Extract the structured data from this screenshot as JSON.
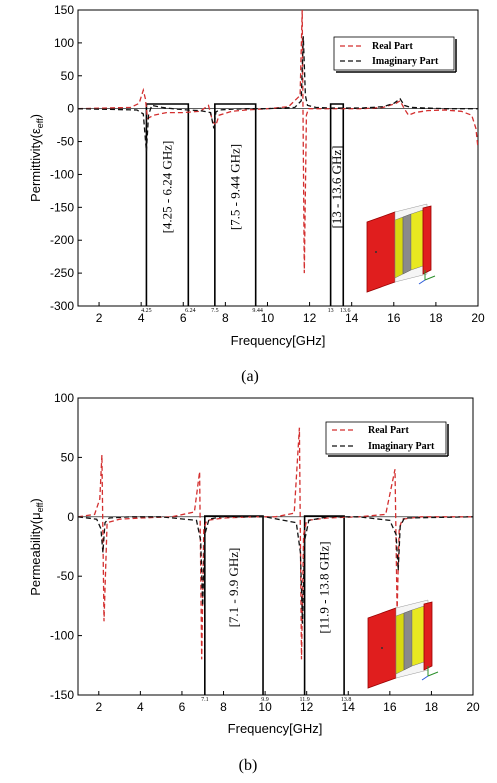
{
  "chart_data": [
    {
      "type": "line",
      "caption": "(a)",
      "xlabel": "Frequency[GHz]",
      "ylabel_text": "Permittivity(ε",
      "ylabel_sub": "eff",
      "ylabel_close": ")",
      "xlim": [
        1,
        20
      ],
      "ylim": [
        -300,
        150
      ],
      "x_ticks": [
        2,
        4,
        6,
        8,
        10,
        12,
        14,
        16,
        18,
        20
      ],
      "y_ticks": [
        150,
        100,
        50,
        0,
        -50,
        -100,
        -150,
        -200,
        -250,
        -300
      ],
      "legend": {
        "position": "top-right",
        "entries": [
          "Real Part",
          "Imaginary Part"
        ]
      },
      "series": [
        {
          "name": "Real Part",
          "color": "#d32f2f",
          "dash": "dashed",
          "x": [
            1,
            3.5,
            3.9,
            4.1,
            4.2,
            4.3,
            4.6,
            5.2,
            6.0,
            6.8,
            7.2,
            7.4,
            7.55,
            7.7,
            8.3,
            9.0,
            10.0,
            11.0,
            11.55,
            11.65,
            11.75,
            11.85,
            11.95,
            12.2,
            13.0,
            14.5,
            15.5,
            16.1,
            16.3,
            16.5,
            16.7,
            17.0,
            17.6,
            18.4,
            19.2,
            19.7,
            19.9,
            20
          ],
          "y": [
            0,
            2,
            8,
            28,
            15,
            -15,
            -10,
            -6,
            -6,
            -4,
            5,
            -20,
            -25,
            -10,
            -4,
            -2,
            0,
            3,
            20,
            150,
            -250,
            -10,
            0,
            0,
            0,
            0,
            2,
            8,
            12,
            0,
            -10,
            -6,
            -3,
            -2,
            -4,
            -10,
            -30,
            -60
          ]
        },
        {
          "name": "Imaginary Part",
          "color": "#111111",
          "dash": "dashed",
          "x": [
            1,
            3.8,
            4.1,
            4.25,
            4.35,
            4.5,
            5.0,
            5.5,
            6.2,
            6.8,
            7.3,
            7.45,
            7.55,
            7.7,
            8.2,
            9.0,
            10.0,
            11.3,
            11.6,
            11.7,
            11.8,
            11.9,
            12.3,
            13.0,
            14.5,
            15.5,
            16.0,
            16.3,
            16.5,
            16.8,
            17.5,
            18.5,
            20
          ],
          "y": [
            0,
            -2,
            -8,
            -65,
            -10,
            5,
            2,
            0,
            -2,
            -3,
            -6,
            -30,
            -5,
            -2,
            -1,
            0,
            0,
            2,
            12,
            110,
            20,
            5,
            2,
            1,
            1,
            3,
            8,
            15,
            5,
            2,
            1,
            0,
            0
          ]
        }
      ],
      "bands": [
        {
          "label": "[4.25 - 6.24 GHz]",
          "start": 4.25,
          "end": 6.24,
          "start_label": "4.25",
          "end_label": "6.24"
        },
        {
          "label": "[7.5 - 9.44 GHz]",
          "start": 7.5,
          "end": 9.44,
          "start_label": "7.5",
          "end_label": "9.44"
        },
        {
          "label": "[13 - 13.6 GHz]",
          "start": 13,
          "end": 13.6,
          "start_label": "13",
          "end_label": "13.6"
        }
      ]
    },
    {
      "type": "line",
      "caption": "(b)",
      "xlabel": "Frequency[GHz]",
      "ylabel_text": "Permeability(μ",
      "ylabel_sub": "eff",
      "ylabel_close": ")",
      "xlim": [
        1,
        20
      ],
      "ylim": [
        -150,
        100
      ],
      "x_ticks": [
        2,
        4,
        6,
        8,
        10,
        12,
        14,
        16,
        18,
        20
      ],
      "y_ticks": [
        100,
        50,
        0,
        -50,
        -100,
        -150
      ],
      "legend": {
        "position": "top-right",
        "entries": [
          "Real Part",
          "Imaginary Part"
        ]
      },
      "series": [
        {
          "name": "Real Part",
          "color": "#d32f2f",
          "dash": "dashed",
          "x": [
            1,
            1.8,
            2.05,
            2.15,
            2.25,
            2.4,
            3.0,
            4.0,
            5.5,
            6.6,
            6.85,
            6.95,
            7.05,
            7.2,
            8.0,
            9.5,
            10.5,
            11.4,
            11.65,
            11.75,
            11.85,
            12.0,
            13.0,
            14.5,
            15.8,
            16.25,
            16.35,
            16.45,
            16.6,
            17.5,
            20
          ],
          "y": [
            0,
            2,
            15,
            52,
            -88,
            -5,
            -2,
            -1,
            0,
            4,
            38,
            -120,
            -10,
            -3,
            -1,
            0,
            0,
            3,
            75,
            -120,
            -15,
            -3,
            -1,
            0,
            2,
            40,
            -80,
            -10,
            -2,
            0,
            0
          ]
        },
        {
          "name": "Imaginary Part",
          "color": "#111111",
          "dash": "dashed",
          "x": [
            1,
            1.9,
            2.1,
            2.2,
            2.3,
            2.5,
            3.5,
            5.0,
            6.7,
            6.9,
            7.0,
            7.1,
            7.3,
            7.9,
            8.5,
            10.0,
            11.5,
            11.7,
            11.8,
            11.9,
            12.1,
            13.0,
            14.5,
            16.0,
            16.3,
            16.4,
            16.5,
            16.7,
            20
          ],
          "y": [
            0,
            -2,
            -10,
            -30,
            -5,
            -1,
            0,
            0,
            -3,
            -20,
            -75,
            -15,
            -2,
            0,
            0,
            0,
            -5,
            -30,
            -90,
            -20,
            -3,
            0,
            0,
            -3,
            -15,
            -45,
            -8,
            -1,
            0
          ]
        }
      ],
      "bands": [
        {
          "label": "[7.1 - 9.9 GHz]",
          "start": 7.1,
          "end": 9.9,
          "start_label": "7.1",
          "end_label": "9.9"
        },
        {
          "label": "[11.9 - 13.8 GHz]",
          "start": 11.9,
          "end": 13.8,
          "start_label": "11.9",
          "end_label": "13.8"
        }
      ]
    }
  ]
}
